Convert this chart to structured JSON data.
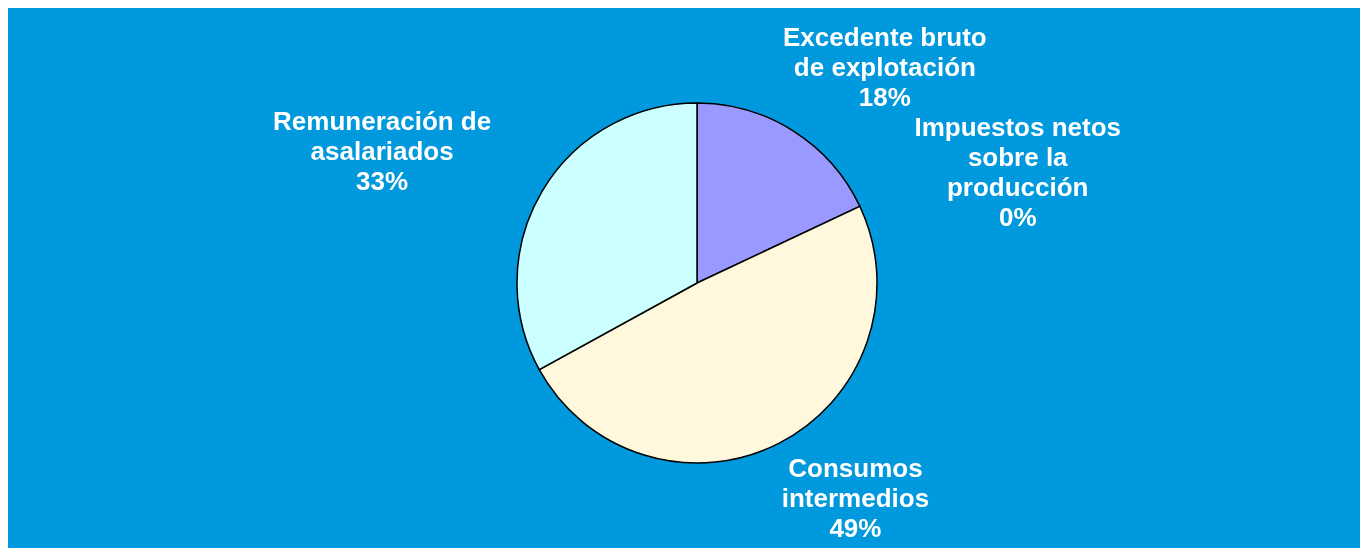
{
  "chart_data": {
    "type": "pie",
    "categories": [
      "Excedente bruto de explotación",
      "Impuestos netos sobre la producción",
      "Consumos intermedios",
      "Remuneración de asalariados"
    ],
    "values": [
      18,
      0,
      49,
      33
    ],
    "value_labels": [
      "18%",
      "0%",
      "49%",
      "33%"
    ],
    "colors": [
      "#9999ff",
      "#4d1a33",
      "#fff8dc",
      "#ccffff"
    ]
  }
}
